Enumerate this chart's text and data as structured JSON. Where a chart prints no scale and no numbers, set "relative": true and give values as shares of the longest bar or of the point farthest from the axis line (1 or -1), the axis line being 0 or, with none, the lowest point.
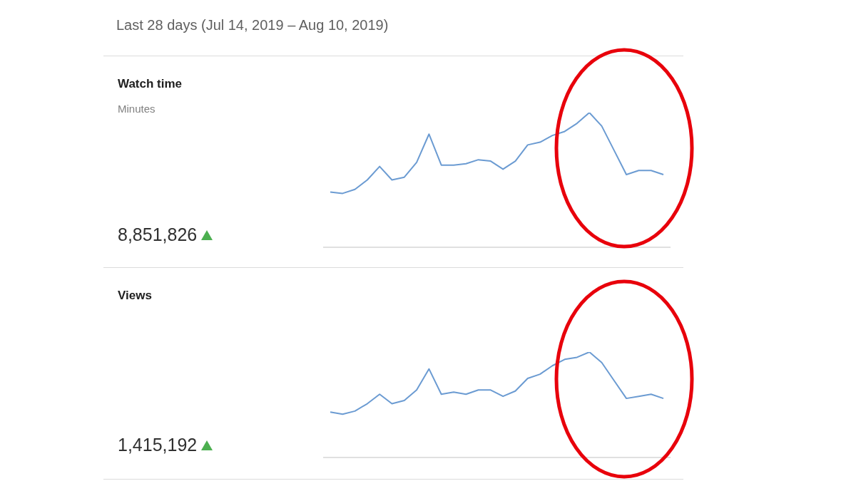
{
  "chart_data": [
    {
      "type": "other",
      "title": "Watch time",
      "subtitle": "Minutes",
      "annotations": [
        "Last 28 days (Jul 14, 2019 – Aug 10, 2019)",
        "8,851,826"
      ]
    },
    {
      "type": "line",
      "relative": true,
      "categories": [
        null,
        null,
        null,
        null,
        null,
        null,
        null,
        null,
        null,
        null,
        null,
        null,
        null,
        null,
        null,
        null,
        null,
        null,
        null,
        null,
        null,
        null,
        null,
        null,
        null,
        null,
        null,
        null
      ],
      "color": "#6b9bd2",
      "values": [
        0.41,
        0.4,
        0.43,
        0.5,
        0.6,
        0.5,
        0.52,
        0.63,
        0.84,
        0.61,
        0.61,
        0.62,
        0.65,
        0.64,
        0.58,
        0.64,
        0.76,
        0.78,
        0.83,
        0.86,
        0.92,
        1,
        0.9,
        0.72,
        0.54,
        0.57,
        0.57,
        0.54
      ]
    },
    {
      "type": "other",
      "title": "Views",
      "annotations": [
        "1,415,192"
      ]
    },
    {
      "type": "line",
      "relative": true,
      "categories": [
        null,
        null,
        null,
        null,
        null,
        null,
        null,
        null,
        null,
        null,
        null,
        null,
        null,
        null,
        null,
        null,
        null,
        null,
        null,
        null,
        null,
        null,
        null,
        null,
        null,
        null,
        null,
        null
      ],
      "color": "#6b9bd2",
      "values": [
        0.43,
        0.41,
        0.44,
        0.51,
        0.6,
        0.51,
        0.54,
        0.64,
        0.84,
        0.6,
        0.62,
        0.6,
        0.64,
        0.64,
        0.58,
        0.63,
        0.75,
        0.79,
        0.87,
        0.93,
        0.95,
        1,
        0.9,
        0.73,
        0.56,
        0.58,
        0.6,
        0.56
      ]
    }
  ]
}
